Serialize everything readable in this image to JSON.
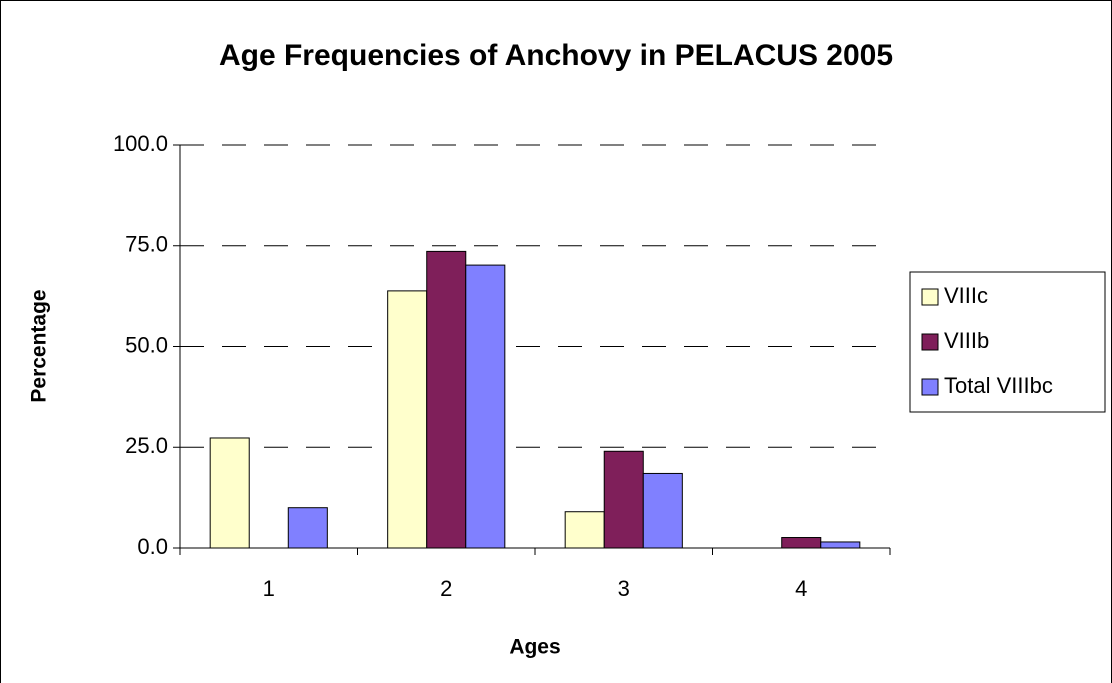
{
  "chart_data": {
    "type": "bar",
    "title": "Age Frequencies of Anchovy in PELACUS 2005",
    "xlabel": "Ages",
    "ylabel": "Percentage",
    "categories": [
      "1",
      "2",
      "3",
      "4"
    ],
    "series": [
      {
        "name": "VIIIc",
        "color": "#ffffcc",
        "values": [
          27.3,
          63.8,
          9.0,
          0
        ]
      },
      {
        "name": "VIIIb",
        "color": "#7f1f5a",
        "values": [
          0,
          73.6,
          24.0,
          2.6
        ]
      },
      {
        "name": "Total VIIIbc",
        "color": "#8080ff",
        "values": [
          10.0,
          70.2,
          18.5,
          1.5
        ]
      }
    ],
    "ylim": [
      0,
      100
    ],
    "yticks": [
      {
        "value": 0,
        "label": "0.0"
      },
      {
        "value": 25,
        "label": "25.0"
      },
      {
        "value": 50,
        "label": "50.0"
      },
      {
        "value": 75,
        "label": "75.0"
      },
      {
        "value": 100,
        "label": "100.0"
      }
    ],
    "grid": true,
    "legend": "right"
  }
}
